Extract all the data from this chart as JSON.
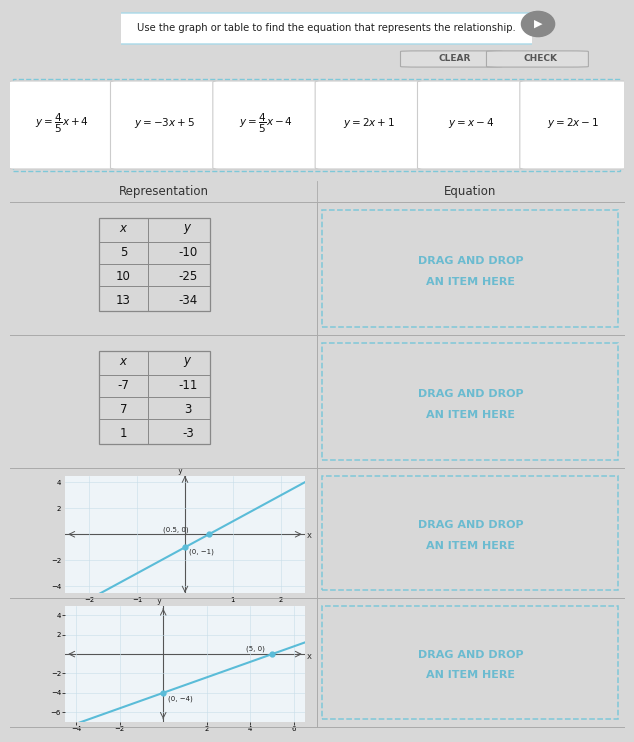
{
  "title_text": "Use the graph or table to find the equation that represents the relationship.",
  "bg_color": "#d8d8d8",
  "card_area_bg": "#cccccc",
  "white": "#ffffff",
  "light_blue_bg": "#dff0f5",
  "dashed_border": "#7ec8d8",
  "drag_text_color": "#6bbbd0",
  "drag_line1": "DRAG AND DROP",
  "drag_line2": "AN ITEM HERE",
  "header_bg": "#c0c0c0",
  "eq_labels": [
    "$y = \\dfrac{4}{5}x + 4$",
    "$y = -3x + 5$",
    "$y = \\dfrac{4}{5}x - 4$",
    "$y = 2x + 1$",
    "$y = x - 4$",
    "$y = 2x - 1$"
  ],
  "table1": {
    "headers": [
      "x",
      "y"
    ],
    "rows": [
      [
        "5",
        "-10"
      ],
      [
        "10",
        "-25"
      ],
      [
        "13",
        "-34"
      ]
    ]
  },
  "table2": {
    "headers": [
      "x",
      "y"
    ],
    "rows": [
      [
        "-7",
        "-11"
      ],
      [
        "7",
        "3"
      ],
      [
        "1",
        "-3"
      ]
    ]
  },
  "graph1": {
    "xlim": [
      -2.5,
      2.5
    ],
    "ylim": [
      -4.5,
      4.5
    ],
    "xticks": [
      -2,
      -1,
      1,
      2
    ],
    "yticks": [
      -4,
      -2,
      2,
      4
    ],
    "points": [
      [
        0.5,
        0
      ],
      [
        0,
        -1
      ]
    ],
    "point_label1": "(0.5, 0)",
    "point_label2": "(0, −1)",
    "line_color": "#5abcd8",
    "slope": 2,
    "intercept": -1
  },
  "graph2": {
    "xlim": [
      -4.5,
      6.5
    ],
    "ylim": [
      -7,
      5
    ],
    "xticks": [
      -4,
      -2,
      2,
      4,
      6
    ],
    "yticks": [
      -6,
      -4,
      -2,
      2,
      4
    ],
    "points": [
      [
        5,
        0
      ],
      [
        0,
        -4
      ]
    ],
    "point_label1": "(5, 0)",
    "point_label2": "(0, −4)",
    "line_color": "#5abcd8",
    "slope": 0.8,
    "intercept": -4
  }
}
